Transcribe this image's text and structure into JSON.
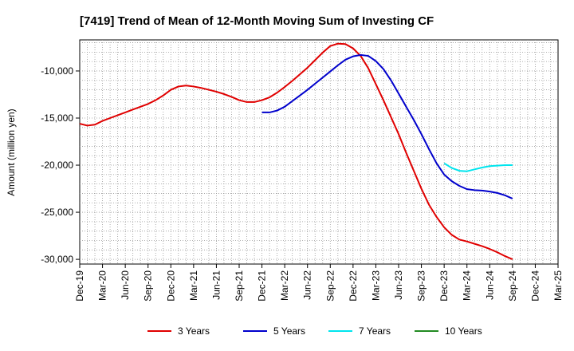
{
  "chart_data": {
    "type": "line",
    "title": "[7419]  Trend of Mean of 12-Month Moving Sum of Investing CF",
    "xlabel": "",
    "ylabel": "Amount (million yen)",
    "ylim": [
      -30500,
      -6700
    ],
    "yticks": [
      -10000,
      -15000,
      -20000,
      -25000,
      -30000
    ],
    "ytick_labels": [
      "-10,000",
      "-15,000",
      "-20,000",
      "-25,000",
      "-30,000"
    ],
    "categories": [
      "Dec-19",
      "Mar-20",
      "Jun-20",
      "Sep-20",
      "Dec-20",
      "Mar-21",
      "Jun-21",
      "Sep-21",
      "Dec-21",
      "Mar-22",
      "Jun-22",
      "Sep-22",
      "Dec-22",
      "Mar-23",
      "Jun-23",
      "Sep-23",
      "Dec-23",
      "Mar-24",
      "Jun-24",
      "Sep-24",
      "Dec-24",
      "Mar-25"
    ],
    "x_unit": "month index (0 = Dec-19, 3 per quarter)",
    "grid": true,
    "legend_position": "bottom",
    "series": [
      {
        "name": "3 Years",
        "color": "#e00000",
        "x": [
          0,
          1,
          2,
          3,
          4,
          5,
          6,
          7,
          8,
          9,
          10,
          11,
          12,
          13,
          14,
          15,
          16,
          17,
          18,
          19,
          20,
          21,
          22,
          23,
          24,
          25,
          26,
          27,
          28,
          29,
          30,
          31,
          32,
          33,
          34,
          35,
          36,
          37,
          38,
          39,
          40,
          41,
          42,
          43,
          44,
          45,
          46,
          47,
          48,
          49,
          50,
          51,
          52,
          53,
          54,
          55,
          56,
          57
        ],
        "values": [
          -15600,
          -15800,
          -15700,
          -15300,
          -15000,
          -14700,
          -14400,
          -14100,
          -13800,
          -13500,
          -13100,
          -12600,
          -12000,
          -11650,
          -11550,
          -11650,
          -11800,
          -12000,
          -12200,
          -12450,
          -12750,
          -13100,
          -13300,
          -13300,
          -13100,
          -12800,
          -12300,
          -11700,
          -11050,
          -10350,
          -9650,
          -8850,
          -8050,
          -7350,
          -7100,
          -7150,
          -7600,
          -8400,
          -9700,
          -11400,
          -13100,
          -14900,
          -16700,
          -18700,
          -20600,
          -22500,
          -24200,
          -25500,
          -26600,
          -27400,
          -27900,
          -28100,
          -28350,
          -28600,
          -28900,
          -29250,
          -29650,
          -30000
        ]
      },
      {
        "name": "5 Years",
        "color": "#0000cc",
        "x": [
          24,
          25,
          26,
          27,
          28,
          29,
          30,
          31,
          32,
          33,
          34,
          35,
          36,
          37,
          38,
          39,
          40,
          41,
          42,
          43,
          44,
          45,
          46,
          47,
          48,
          49,
          50,
          51,
          52,
          53,
          54,
          55,
          56,
          57
        ],
        "values": [
          -14400,
          -14400,
          -14200,
          -13800,
          -13200,
          -12600,
          -12000,
          -11350,
          -10700,
          -10050,
          -9400,
          -8800,
          -8450,
          -8300,
          -8400,
          -8950,
          -9800,
          -11000,
          -12400,
          -13800,
          -15200,
          -16700,
          -18300,
          -19800,
          -21000,
          -21700,
          -22200,
          -22550,
          -22650,
          -22700,
          -22800,
          -22950,
          -23200,
          -23550
        ]
      },
      {
        "name": "7 Years",
        "color": "#00e5ee",
        "x": [
          48,
          49,
          50,
          51,
          52,
          53,
          54,
          55,
          56,
          57
        ],
        "values": [
          -19800,
          -20300,
          -20600,
          -20650,
          -20450,
          -20250,
          -20100,
          -20050,
          -20000,
          -20000
        ]
      },
      {
        "name": "10 Years",
        "color": "#228b22",
        "x": [],
        "values": []
      }
    ]
  }
}
